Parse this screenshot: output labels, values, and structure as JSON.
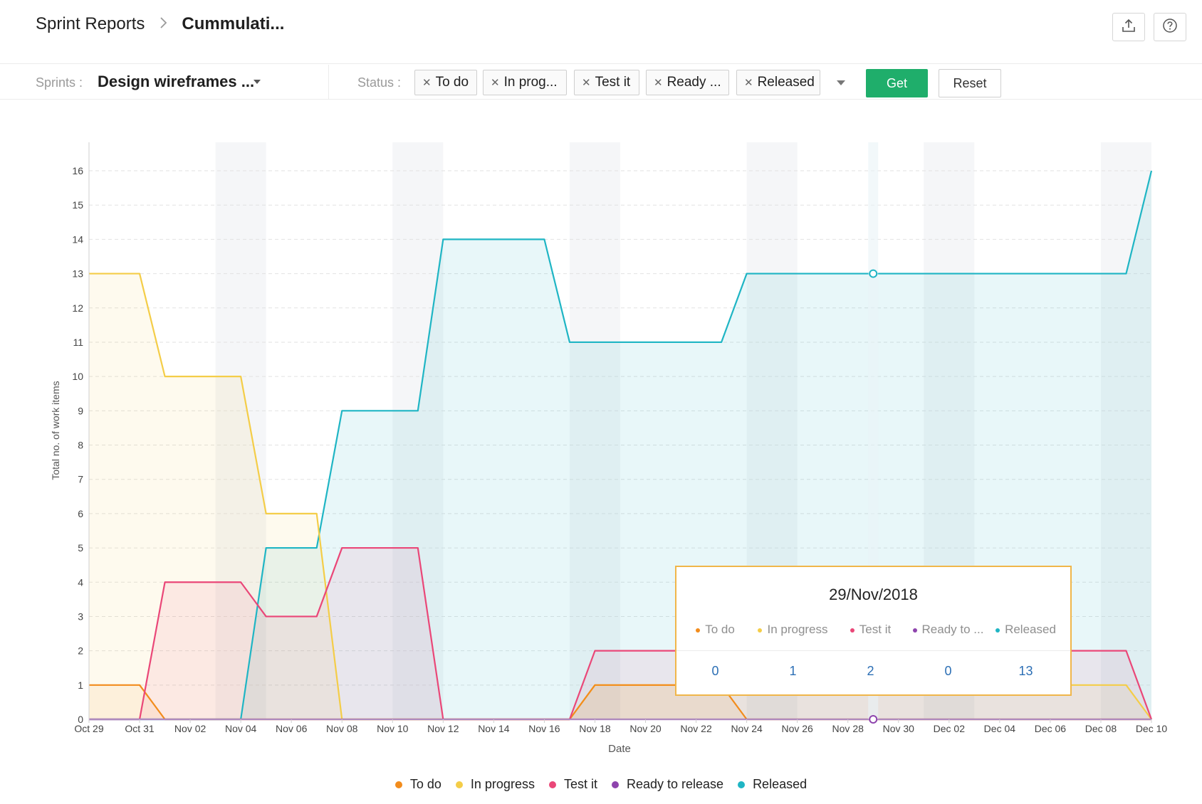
{
  "header": {
    "breadcrumb_root": "Sprint Reports",
    "breadcrumb_current": "Cummulati...",
    "export_icon": "upload-icon",
    "help_icon": "help-circle-icon"
  },
  "filters": {
    "sprints_label": "Sprints :",
    "sprints_value": "Design wireframes ...",
    "status_label": "Status :",
    "status_chips": [
      "To do",
      "In prog...",
      "Test it",
      "Ready ...",
      "Released"
    ],
    "get_label": "Get",
    "reset_label": "Reset"
  },
  "chart_data": {
    "type": "area",
    "xlabel": "Date",
    "ylabel": "Total no. of work items",
    "ylim": [
      0,
      16
    ],
    "yticks": [
      0,
      1,
      2,
      3,
      4,
      5,
      6,
      7,
      8,
      9,
      10,
      11,
      12,
      13,
      14,
      15,
      16
    ],
    "x_tick_labels": [
      "Oct 29",
      "Oct 31",
      "Nov 02",
      "Nov 04",
      "Nov 06",
      "Nov 08",
      "Nov 10",
      "Nov 12",
      "Nov 14",
      "Nov 16",
      "Nov 18",
      "Nov 20",
      "Nov 22",
      "Nov 24",
      "Nov 26",
      "Nov 28",
      "Nov 30",
      "Dec 02",
      "Dec 04",
      "Dec 06",
      "Dec 08",
      "Dec 10"
    ],
    "x": [
      "Oct 29",
      "Oct 30",
      "Oct 31",
      "Nov 01",
      "Nov 02",
      "Nov 03",
      "Nov 04",
      "Nov 05",
      "Nov 06",
      "Nov 07",
      "Nov 08",
      "Nov 09",
      "Nov 10",
      "Nov 11",
      "Nov 12",
      "Nov 13",
      "Nov 14",
      "Nov 15",
      "Nov 16",
      "Nov 17",
      "Nov 18",
      "Nov 19",
      "Nov 20",
      "Nov 21",
      "Nov 22",
      "Nov 23",
      "Nov 24",
      "Nov 25",
      "Nov 26",
      "Nov 27",
      "Nov 28",
      "Nov 29",
      "Nov 30",
      "Dec 01",
      "Dec 02",
      "Dec 03",
      "Dec 04",
      "Dec 05",
      "Dec 06",
      "Dec 07",
      "Dec 08",
      "Dec 09",
      "Dec 10"
    ],
    "weekend_bands": [
      [
        "Nov 03",
        "Nov 05"
      ],
      [
        "Nov 10",
        "Nov 12"
      ],
      [
        "Nov 17",
        "Nov 19"
      ],
      [
        "Nov 24",
        "Nov 26"
      ],
      [
        "Dec 01",
        "Dec 03"
      ],
      [
        "Dec 08",
        "Dec 10"
      ]
    ],
    "series": [
      {
        "name": "To do",
        "color": "#f28c1c",
        "values": [
          1,
          1,
          1,
          0,
          0,
          0,
          0,
          0,
          0,
          0,
          0,
          0,
          0,
          0,
          0,
          0,
          0,
          0,
          0,
          0,
          1,
          1,
          1,
          1,
          1,
          1,
          0,
          0,
          0,
          0,
          0,
          0,
          0,
          0,
          0,
          0,
          0,
          0,
          0,
          0,
          0,
          0,
          0
        ]
      },
      {
        "name": "In progress",
        "color": "#f4cd48",
        "values": [
          13,
          13,
          13,
          10,
          10,
          10,
          10,
          6,
          6,
          6,
          0,
          0,
          0,
          0,
          0,
          0,
          0,
          0,
          0,
          0,
          1,
          1,
          1,
          1,
          1,
          1,
          1,
          1,
          1,
          1,
          1,
          1,
          1,
          1,
          1,
          1,
          1,
          1,
          1,
          1,
          1,
          1,
          0
        ]
      },
      {
        "name": "Test it",
        "color": "#ea4778",
        "values": [
          0,
          0,
          0,
          4,
          4,
          4,
          4,
          3,
          3,
          3,
          5,
          5,
          5,
          5,
          0,
          0,
          0,
          0,
          0,
          0,
          2,
          2,
          2,
          2,
          2,
          2,
          2,
          2,
          2,
          2,
          2,
          2,
          2,
          2,
          2,
          2,
          2,
          2,
          2,
          2,
          2,
          2,
          0
        ]
      },
      {
        "name": "Ready to release",
        "color": "#8e44ad",
        "values": [
          0,
          0,
          0,
          0,
          0,
          0,
          0,
          0,
          0,
          0,
          0,
          0,
          0,
          0,
          0,
          0,
          0,
          0,
          0,
          0,
          0,
          0,
          0,
          0,
          0,
          0,
          0,
          0,
          0,
          0,
          0,
          0,
          0,
          0,
          0,
          0,
          0,
          0,
          0,
          0,
          0,
          0,
          0
        ]
      },
      {
        "name": "Released",
        "color": "#1fb5c4",
        "values": [
          0,
          0,
          0,
          0,
          0,
          0,
          0,
          5,
          5,
          5,
          9,
          9,
          9,
          9,
          14,
          14,
          14,
          14,
          14,
          11,
          11,
          11,
          11,
          11,
          11,
          11,
          13,
          13,
          13,
          13,
          13,
          13,
          13,
          13,
          13,
          13,
          13,
          13,
          13,
          13,
          13,
          13,
          16
        ]
      }
    ],
    "grid": true,
    "legend": "bottom",
    "tooltip": {
      "date": "29/Nov/2018",
      "labels": [
        "To do",
        "In progress",
        "Test it",
        "Ready to ...",
        "Released"
      ],
      "values": [
        "0",
        "1",
        "2",
        "0",
        "13"
      ]
    }
  }
}
